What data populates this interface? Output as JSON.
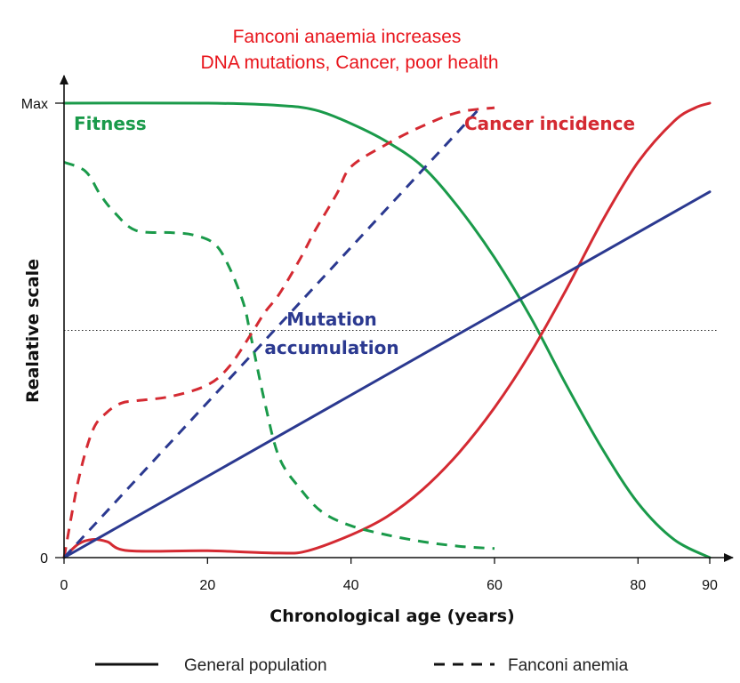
{
  "chart_data": {
    "type": "line",
    "title_lines": [
      "Fanconi anaemia increases",
      "DNA mutations, Cancer, poor health"
    ],
    "xlabel": "Chronological age (years)",
    "ylabel": "Realative scale",
    "xlim": [
      0,
      90
    ],
    "ylim": [
      0,
      1
    ],
    "x_ticks": [
      {
        "value": 0,
        "label": "0"
      },
      {
        "value": 20,
        "label": "20"
      },
      {
        "value": 40,
        "label": "40"
      },
      {
        "value": 60,
        "label": "60"
      },
      {
        "value": 80,
        "label": "80"
      },
      {
        "value": 90,
        "label": "90"
      }
    ],
    "y_ticks": [
      {
        "value": 0,
        "label": "0"
      },
      {
        "value": 1,
        "label": "Max"
      }
    ],
    "reference_line": {
      "y": 0.5,
      "style": "dotted"
    },
    "series_labels": [
      {
        "text": "Fitness",
        "color": "#1a9a4a"
      },
      {
        "text": "Cancer incidence",
        "color": "#d42a32"
      },
      {
        "text": "Mutation",
        "color": "#2b3990"
      },
      {
        "text": "accumulation",
        "color": "#2b3990"
      }
    ],
    "series": [
      {
        "name": "Fitness",
        "group": "General population",
        "style": "solid",
        "color": "#1a9a4a",
        "x": [
          0,
          20,
          30,
          35,
          40,
          45,
          50,
          55,
          60,
          65,
          70,
          75,
          80,
          85,
          90
        ],
        "y": [
          1.0,
          1.0,
          0.995,
          0.985,
          0.955,
          0.915,
          0.86,
          0.77,
          0.66,
          0.53,
          0.38,
          0.24,
          0.12,
          0.04,
          0.0
        ]
      },
      {
        "name": "Cancer incidence",
        "group": "General population",
        "style": "solid",
        "color": "#d42a32",
        "x": [
          0,
          2,
          4,
          6,
          9,
          20,
          30,
          34,
          40,
          45,
          50,
          55,
          60,
          65,
          70,
          75,
          80,
          85,
          88,
          90
        ],
        "y": [
          0,
          0.03,
          0.04,
          0.035,
          0.015,
          0.015,
          0.01,
          0.015,
          0.05,
          0.09,
          0.15,
          0.23,
          0.33,
          0.45,
          0.59,
          0.74,
          0.87,
          0.96,
          0.99,
          1.0
        ]
      },
      {
        "name": "Mutation accumulation",
        "group": "General population",
        "style": "solid",
        "color": "#2b3990",
        "x": [
          0,
          90
        ],
        "y": [
          0,
          0.805
        ]
      },
      {
        "name": "Fitness",
        "group": "Fanconi anemia",
        "style": "dashed",
        "color": "#1a9a4a",
        "x": [
          0,
          3,
          5,
          7,
          10,
          15,
          18,
          21,
          23,
          25,
          26,
          28,
          30,
          33,
          36,
          40,
          45,
          50,
          55,
          60
        ],
        "y": [
          0.87,
          0.85,
          0.8,
          0.76,
          0.72,
          0.715,
          0.71,
          0.69,
          0.64,
          0.56,
          0.49,
          0.34,
          0.22,
          0.15,
          0.1,
          0.07,
          0.05,
          0.035,
          0.025,
          0.02
        ]
      },
      {
        "name": "Cancer incidence",
        "group": "Fanconi anemia",
        "style": "dashed",
        "color": "#d42a32",
        "x": [
          0,
          2,
          4,
          6,
          8,
          10,
          15,
          20,
          23,
          26,
          28,
          30,
          33,
          35,
          38,
          40,
          45,
          50,
          55,
          60
        ],
        "y": [
          0,
          0.17,
          0.28,
          0.32,
          0.34,
          0.345,
          0.355,
          0.38,
          0.42,
          0.49,
          0.54,
          0.58,
          0.66,
          0.72,
          0.8,
          0.86,
          0.91,
          0.95,
          0.98,
          0.99
        ]
      },
      {
        "name": "Mutation accumulation",
        "group": "Fanconi anemia",
        "style": "dashed",
        "color": "#2b3990",
        "x": [
          0,
          58
        ],
        "y": [
          0,
          0.99
        ]
      }
    ],
    "legend": [
      {
        "label": "General population",
        "style": "solid"
      },
      {
        "label": "Fanconi anemia",
        "style": "dashed"
      }
    ],
    "legend_position": "bottom"
  }
}
